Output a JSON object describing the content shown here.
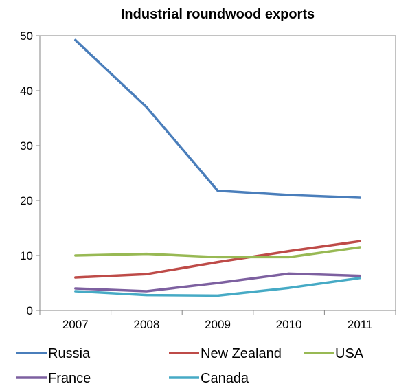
{
  "chart_data": {
    "type": "line",
    "title": "Industrial roundwood exports",
    "xlabel": "",
    "ylabel": "",
    "categories": [
      "2007",
      "2008",
      "2009",
      "2010",
      "2011"
    ],
    "ylim": [
      0,
      50
    ],
    "yticks": [
      0,
      10,
      20,
      30,
      40,
      50
    ],
    "grid": false,
    "legend_position": "bottom",
    "series": [
      {
        "name": "Russia",
        "color": "#4a7ebb",
        "values": [
          49.2,
          37.0,
          21.8,
          21.0,
          20.5
        ]
      },
      {
        "name": "New Zealand",
        "color": "#be4b48",
        "values": [
          6.0,
          6.6,
          8.8,
          10.8,
          12.6
        ]
      },
      {
        "name": "USA",
        "color": "#98b954",
        "values": [
          10.0,
          10.3,
          9.7,
          9.7,
          11.5
        ]
      },
      {
        "name": "France",
        "color": "#7d60a0",
        "values": [
          4.0,
          3.5,
          5.0,
          6.7,
          6.3
        ]
      },
      {
        "name": "Canada",
        "color": "#46aac5",
        "values": [
          3.5,
          2.8,
          2.7,
          4.1,
          5.9
        ]
      }
    ]
  }
}
